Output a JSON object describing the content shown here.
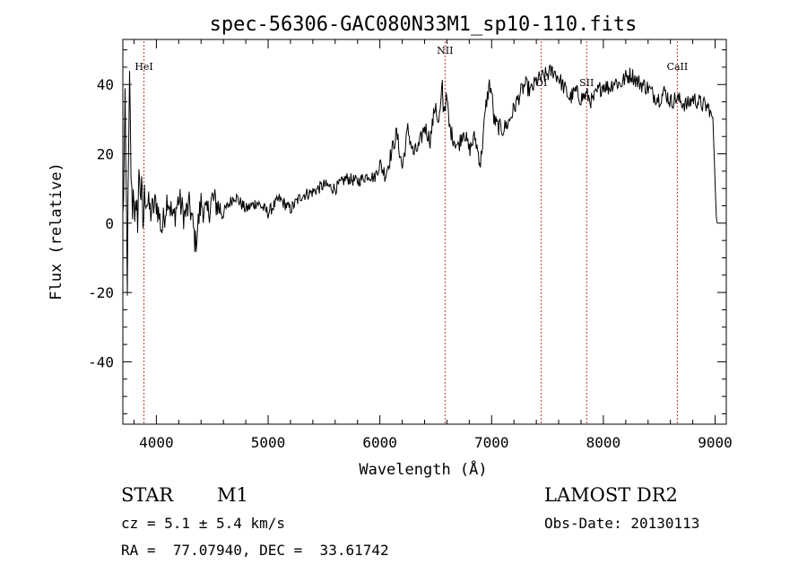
{
  "chart_data": {
    "type": "line",
    "title": "spec-56306-GAC080N33M1_sp10-110.fits",
    "xlabel": "Wavelength (Å)",
    "ylabel": "Flux (relative)",
    "xlim": [
      3700,
      9100
    ],
    "ylim": [
      -58,
      53
    ],
    "xticks": [
      4000,
      5000,
      6000,
      7000,
      8000,
      9000
    ],
    "yticks": [
      -40,
      -20,
      0,
      20,
      40
    ],
    "series": [
      {
        "x": [
          3700,
          3720,
          3740,
          3760,
          3780,
          3800,
          3820,
          3850,
          3880,
          3900,
          3950,
          4000,
          4050,
          4100,
          4150,
          4200,
          4250,
          4300,
          4350,
          4400,
          4450,
          4500,
          4600,
          4700,
          4800,
          4900,
          5000,
          5100,
          5200,
          5300,
          5400,
          5500,
          5600,
          5700,
          5800,
          5900,
          5950,
          6000,
          6050,
          6100,
          6150,
          6200,
          6250,
          6300,
          6350,
          6400,
          6450,
          6500,
          6520,
          6540,
          6560,
          6563,
          6570,
          6580,
          6600,
          6620,
          6650,
          6700,
          6750,
          6800,
          6850,
          6900,
          6950,
          6980,
          7000,
          7020,
          7050,
          7100,
          7150,
          7200,
          7250,
          7300,
          7350,
          7400,
          7450,
          7500,
          7550,
          7600,
          7650,
          7700,
          7750,
          7800,
          7850,
          7900,
          7950,
          8000,
          8050,
          8100,
          8150,
          8200,
          8250,
          8300,
          8350,
          8400,
          8450,
          8500,
          8550,
          8600,
          8650,
          8700,
          8750,
          8800,
          8850,
          8900,
          8950,
          8980,
          9000,
          9010,
          9020
        ],
        "y": [
          0,
          30,
          -15,
          38,
          5,
          10,
          -3,
          15,
          0,
          8,
          3,
          6,
          -2,
          8,
          1,
          7,
          2,
          5,
          -6,
          6,
          2,
          7,
          3,
          8,
          4,
          6,
          3,
          7,
          4,
          8,
          9,
          11,
          10,
          13,
          12,
          14,
          13,
          17,
          14,
          20,
          26,
          16,
          27,
          20,
          22,
          28,
          24,
          35,
          28,
          32,
          40,
          35,
          33,
          34,
          36,
          28,
          25,
          22,
          27,
          21,
          25,
          17,
          34,
          40,
          38,
          30,
          28,
          27,
          29,
          33,
          37,
          40,
          38,
          41,
          42,
          43,
          44,
          42,
          39,
          36,
          38,
          36,
          37,
          35,
          38,
          40,
          39,
          41,
          40,
          42,
          43,
          41,
          40,
          39,
          37,
          36,
          38,
          35,
          36,
          35,
          34,
          36,
          35,
          34,
          33,
          30,
          12,
          2,
          0
        ]
      }
    ],
    "lines": [
      {
        "label": "HeI",
        "x": 3889
      },
      {
        "label": "NII",
        "x": 6583
      },
      {
        "label": "OI",
        "x": 7444
      },
      {
        "label": "SII",
        "x": 7850
      },
      {
        "label": "CaII",
        "x": 8662
      }
    ]
  },
  "info": {
    "class_label": "STAR",
    "subclass_label": "M1",
    "survey": "LAMOST DR2",
    "cz": "cz = 5.1 ± 5.4 km/s",
    "obs_date": "Obs-Date: 20130113",
    "coords": "RA =  77.07940, DEC =  33.61742"
  }
}
